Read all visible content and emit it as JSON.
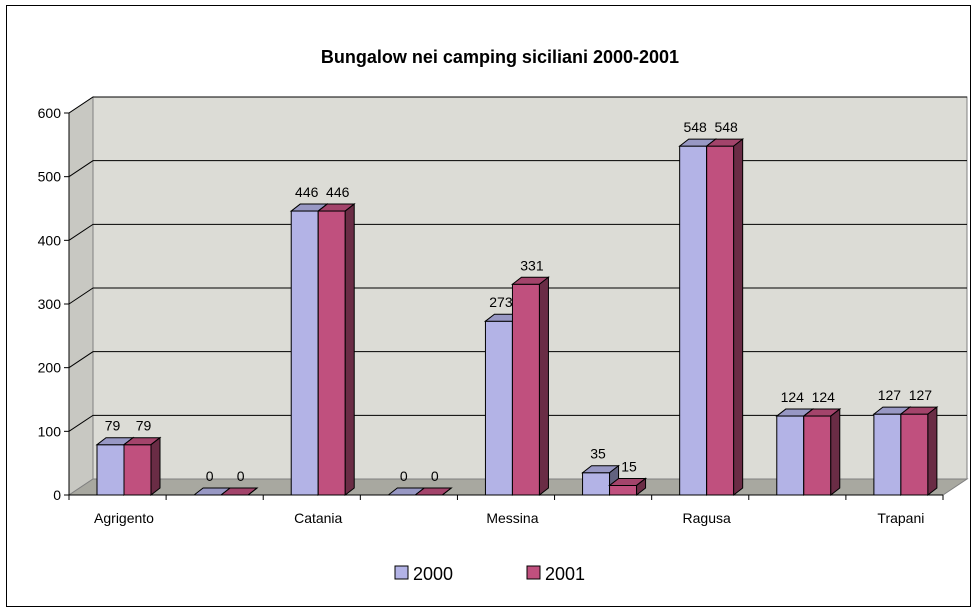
{
  "chart_data": {
    "type": "bar",
    "title": "Bungalow nei camping siciliani 2000-2001",
    "categories": [
      "Agrigento",
      "",
      "Catania",
      "",
      "Messina",
      "",
      "Ragusa",
      "",
      "Trapani"
    ],
    "series": [
      {
        "name": "2000",
        "values": [
          79,
          0,
          446,
          0,
          273,
          35,
          548,
          124,
          127
        ],
        "color": "#b3b3e6"
      },
      {
        "name": "2001",
        "values": [
          79,
          0,
          446,
          0,
          331,
          15,
          548,
          124,
          127
        ],
        "color": "#c0507e"
      }
    ],
    "ylim": [
      0,
      600
    ],
    "yticks": [
      "0",
      "100",
      "200",
      "300",
      "400",
      "500",
      "600"
    ],
    "grid": true,
    "legend": "bottom",
    "wall_color": "#dcdcd6",
    "floor_color": "#a8a8a0"
  }
}
